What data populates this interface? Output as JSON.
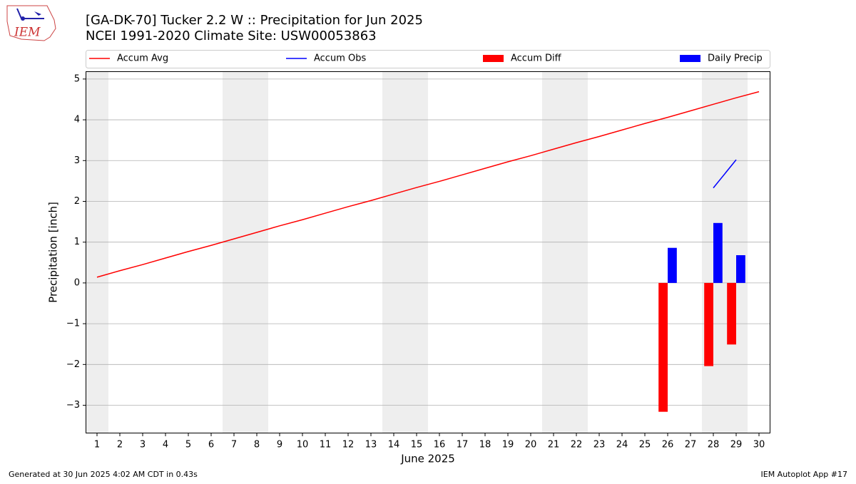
{
  "chart_data": {
    "type": "combo",
    "title": "[GA-DK-70] Tucker 2.2 W :: Precipitation for Jun 2025",
    "subtitle": "NCEI 1991-2020 Climate Site: USW00053863",
    "x_label": "June 2025",
    "y_label": "Precipitation [inch]",
    "x": [
      1,
      2,
      3,
      4,
      5,
      6,
      7,
      8,
      9,
      10,
      11,
      12,
      13,
      14,
      15,
      16,
      17,
      18,
      19,
      20,
      21,
      22,
      23,
      24,
      25,
      26,
      27,
      28,
      29,
      30
    ],
    "series": [
      {
        "name": "Accum Avg",
        "type": "line",
        "color": "#ff0000",
        "values": [
          0.14,
          0.3,
          0.45,
          0.61,
          0.77,
          0.92,
          1.08,
          1.24,
          1.4,
          1.55,
          1.71,
          1.87,
          2.02,
          2.18,
          2.34,
          2.49,
          2.65,
          2.81,
          2.97,
          3.12,
          3.28,
          3.44,
          3.59,
          3.75,
          3.91,
          4.06,
          4.22,
          4.38,
          4.54,
          4.69
        ]
      },
      {
        "name": "Accum Obs",
        "type": "line",
        "color": "#0000ff",
        "values": [
          null,
          null,
          null,
          null,
          null,
          null,
          null,
          null,
          null,
          null,
          null,
          null,
          null,
          null,
          null,
          null,
          null,
          null,
          null,
          null,
          null,
          null,
          null,
          null,
          null,
          null,
          null,
          2.33,
          3.02,
          null
        ]
      },
      {
        "name": "Accum Diff",
        "type": "bar",
        "color": "#ff0000",
        "values": [
          null,
          null,
          null,
          null,
          null,
          null,
          null,
          null,
          null,
          null,
          null,
          null,
          null,
          null,
          null,
          null,
          null,
          null,
          null,
          null,
          null,
          null,
          null,
          null,
          null,
          -3.16,
          null,
          -2.04,
          -1.51,
          null
        ]
      },
      {
        "name": "Daily Precip",
        "type": "bar",
        "color": "#0000ff",
        "values": [
          null,
          null,
          null,
          null,
          null,
          null,
          null,
          null,
          null,
          null,
          null,
          null,
          null,
          null,
          null,
          null,
          null,
          null,
          null,
          null,
          null,
          null,
          null,
          null,
          null,
          0.86,
          null,
          1.47,
          0.68,
          null
        ]
      }
    ],
    "xlim": [
      0.5,
      30.5
    ],
    "xticks": [
      1,
      2,
      3,
      4,
      5,
      6,
      7,
      8,
      9,
      10,
      11,
      12,
      13,
      14,
      15,
      16,
      17,
      18,
      19,
      20,
      21,
      22,
      23,
      24,
      25,
      26,
      27,
      28,
      29,
      30
    ],
    "ylim": [
      -3.69,
      5.19
    ],
    "yticks": [
      {
        "value": -3,
        "label": "−3"
      },
      {
        "value": -2,
        "label": "−2"
      },
      {
        "value": -1,
        "label": "−1"
      },
      0,
      1,
      2,
      3,
      4,
      5
    ],
    "grid": true,
    "legend": "top"
  },
  "logo_text": "IEM",
  "footer_left": "Generated at 30 Jun 2025 4:02 AM CDT in 0.43s",
  "footer_right": "IEM Autoplot App #17"
}
